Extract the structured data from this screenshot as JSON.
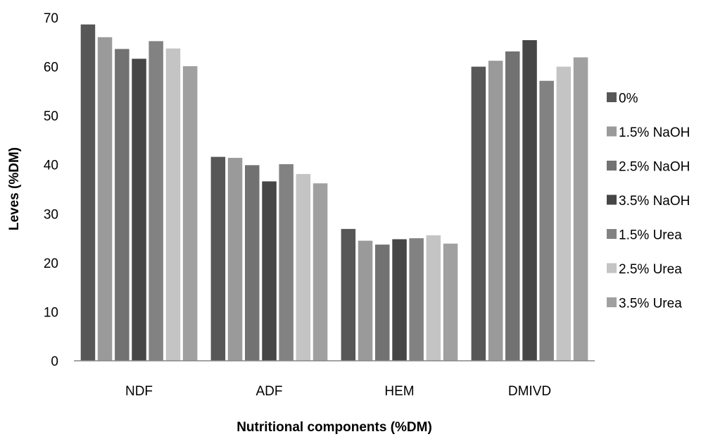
{
  "chart_data": {
    "type": "bar",
    "title": "",
    "xlabel": "Nutritional components (%DM)",
    "ylabel": "Leves (%DM)",
    "ylim": [
      0,
      70
    ],
    "yticks": [
      0,
      10,
      20,
      30,
      40,
      50,
      60,
      70
    ],
    "grid": false,
    "legend_position": "right",
    "categories": [
      "NDF",
      "ADF",
      "HEM",
      "DMIVD"
    ],
    "series": [
      {
        "name": "0%",
        "values": [
          68.6,
          41.6,
          26.9,
          60.0
        ],
        "color": "#575757"
      },
      {
        "name": "1.5% NaOH",
        "values": [
          66.0,
          41.4,
          24.5,
          61.2
        ],
        "color": "#9a9a9a"
      },
      {
        "name": "2.5% NaOH",
        "values": [
          63.6,
          39.9,
          23.7,
          63.1
        ],
        "color": "#727272"
      },
      {
        "name": "3.5% NaOH",
        "values": [
          61.6,
          36.6,
          24.8,
          65.4
        ],
        "color": "#464646"
      },
      {
        "name": "1.5% Urea",
        "values": [
          65.2,
          40.1,
          25.0,
          57.1
        ],
        "color": "#828282"
      },
      {
        "name": "2.5% Urea",
        "values": [
          63.7,
          38.1,
          25.6,
          60.0
        ],
        "color": "#c4c4c4"
      },
      {
        "name": "3.5% Urea",
        "values": [
          60.1,
          36.2,
          23.9,
          61.9
        ],
        "color": "#a0a0a0"
      }
    ]
  }
}
